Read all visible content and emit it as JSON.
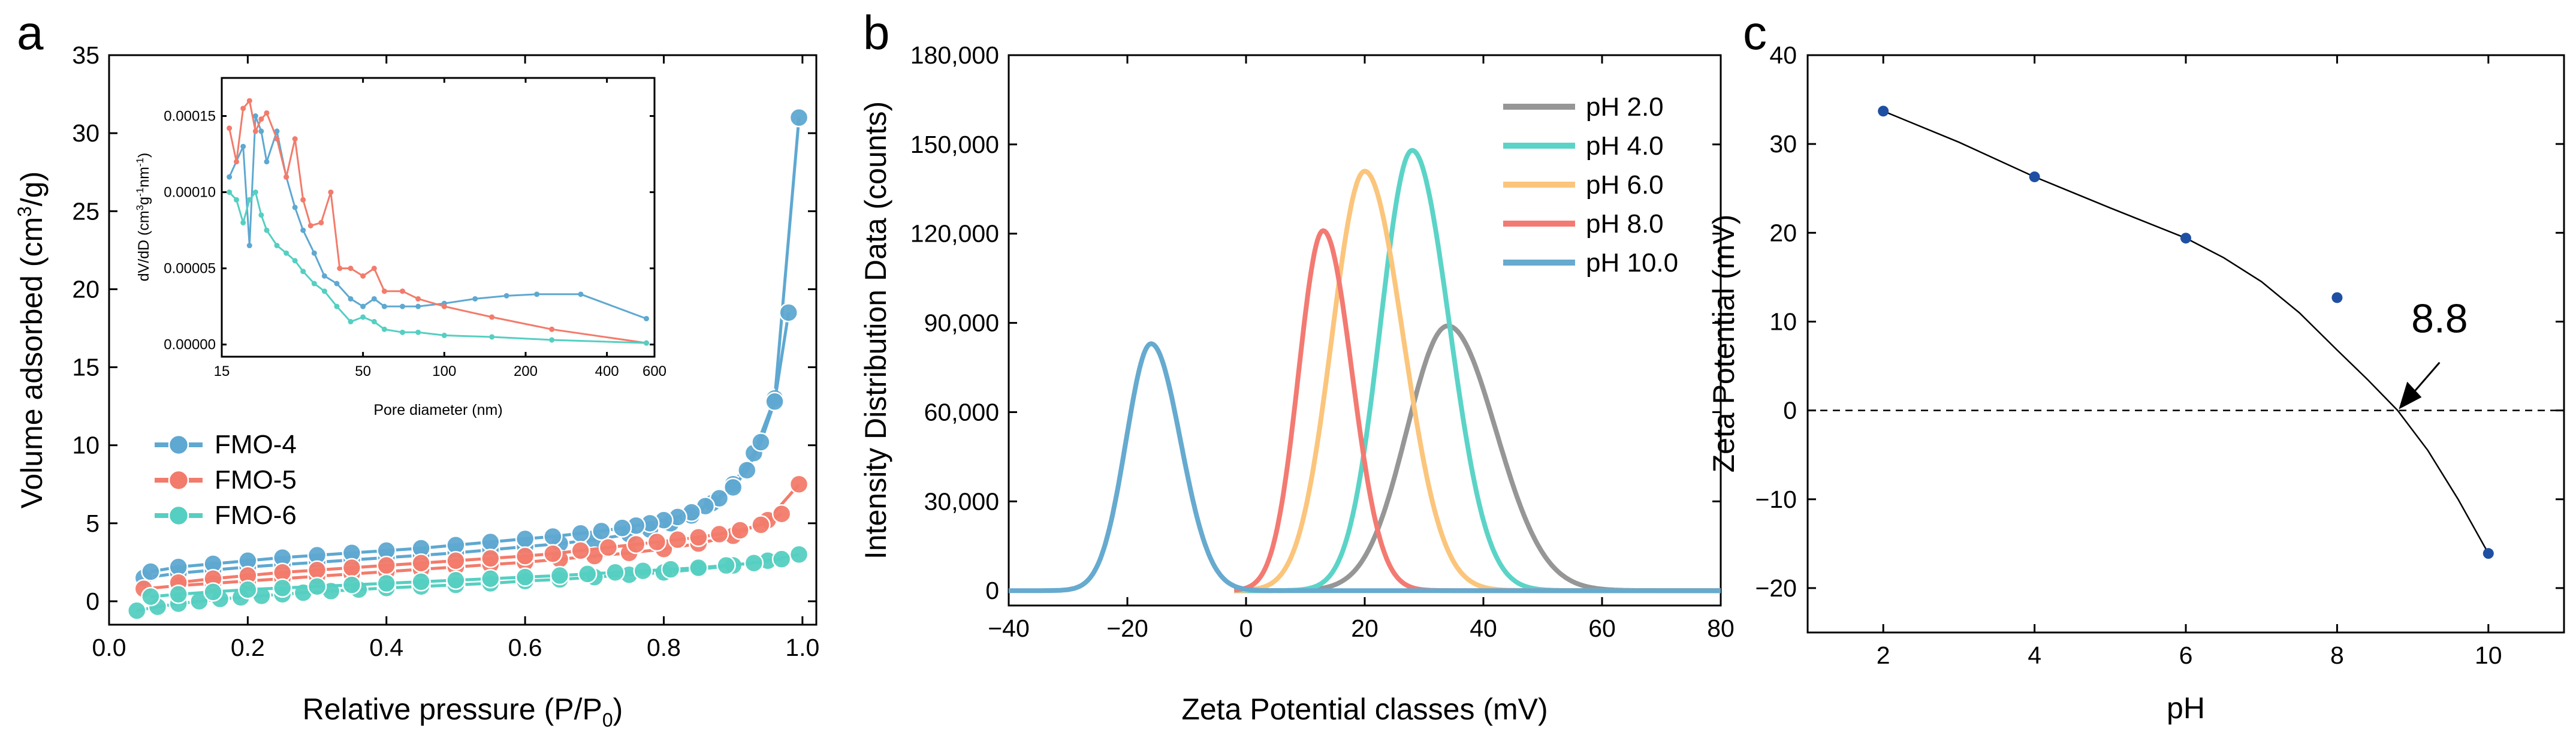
{
  "colors": {
    "fmo4": "#5ea8d1",
    "fmo5": "#f27b6b",
    "fmo6": "#55cfc1",
    "ph2": "#969696",
    "ph4": "#5bd4c7",
    "ph6": "#fbc57c",
    "ph8": "#f37a72",
    "ph10": "#66aacf",
    "pointC": "#1f4fa3"
  },
  "chart_data": [
    {
      "panel": "a",
      "type": "scatter",
      "mode": "lines+markers",
      "xlabel": "Relative pressure (P/P",
      "xlabel_sub": "0",
      "xlabel_end": ")",
      "ylabel": "Volume adsorbed (cm",
      "ylabel_sup": "3",
      "ylabel_end": "/g)",
      "xlim": [
        0.0,
        1.02
      ],
      "ylim": [
        -1.5,
        35
      ],
      "xticks": [
        "0.0",
        "0.2",
        "0.4",
        "0.6",
        "0.8",
        "1.0"
      ],
      "xtick_values": [
        0.0,
        0.2,
        0.4,
        0.6,
        0.8,
        1.0
      ],
      "yticks": [
        "0",
        "5",
        "10",
        "15",
        "20",
        "25",
        "30",
        "35"
      ],
      "ytick_values": [
        0,
        5,
        10,
        15,
        20,
        25,
        30,
        35
      ],
      "legend": {
        "position": "center-left",
        "entries": [
          "FMO-4",
          "FMO-5",
          "FMO-6"
        ]
      },
      "series": [
        {
          "name": "FMO-4",
          "adsorption": {
            "x": [
              0.05,
              0.1,
              0.15,
              0.2,
              0.25,
              0.3,
              0.35,
              0.4,
              0.45,
              0.5,
              0.55,
              0.6,
              0.65,
              0.7,
              0.75,
              0.78,
              0.81,
              0.84,
              0.87,
              0.9,
              0.93,
              0.96,
              0.995
            ],
            "y": [
              1.5,
              1.8,
              2.0,
              2.2,
              2.35,
              2.5,
              2.65,
              2.8,
              2.95,
              3.1,
              3.3,
              3.5,
              3.7,
              3.95,
              4.3,
              4.6,
              5.0,
              5.5,
              6.3,
              7.5,
              9.5,
              13.0,
              31.0
            ]
          },
          "desorption": {
            "x": [
              0.98,
              0.96,
              0.94,
              0.92,
              0.9,
              0.88,
              0.86,
              0.84,
              0.82,
              0.8,
              0.78,
              0.76,
              0.74,
              0.71,
              0.68,
              0.64,
              0.6,
              0.55,
              0.5,
              0.45,
              0.4,
              0.35,
              0.3,
              0.25,
              0.2,
              0.15,
              0.1,
              0.06
            ],
            "y": [
              18.5,
              12.8,
              10.2,
              8.4,
              7.3,
              6.6,
              6.1,
              5.7,
              5.4,
              5.2,
              5.0,
              4.85,
              4.7,
              4.5,
              4.35,
              4.15,
              4.0,
              3.8,
              3.6,
              3.4,
              3.25,
              3.1,
              2.95,
              2.8,
              2.6,
              2.4,
              2.2,
              1.9
            ]
          }
        },
        {
          "name": "FMO-5",
          "adsorption": {
            "x": [
              0.05,
              0.1,
              0.15,
              0.2,
              0.25,
              0.3,
              0.35,
              0.4,
              0.45,
              0.5,
              0.55,
              0.6,
              0.65,
              0.7,
              0.75,
              0.8,
              0.85,
              0.9,
              0.95,
              0.995
            ],
            "y": [
              0.8,
              1.0,
              1.15,
              1.3,
              1.45,
              1.6,
              1.75,
              1.9,
              2.05,
              2.2,
              2.35,
              2.5,
              2.7,
              2.9,
              3.1,
              3.35,
              3.7,
              4.2,
              5.2,
              7.5
            ]
          },
          "desorption": {
            "x": [
              0.97,
              0.94,
              0.91,
              0.88,
              0.85,
              0.82,
              0.79,
              0.76,
              0.72,
              0.68,
              0.64,
              0.6,
              0.55,
              0.5,
              0.45,
              0.4,
              0.35,
              0.3,
              0.25,
              0.2,
              0.15,
              0.1
            ],
            "y": [
              5.6,
              4.9,
              4.55,
              4.3,
              4.1,
              3.95,
              3.8,
              3.65,
              3.45,
              3.25,
              3.05,
              2.9,
              2.75,
              2.6,
              2.45,
              2.3,
              2.15,
              2.0,
              1.85,
              1.65,
              1.45,
              1.2
            ]
          }
        },
        {
          "name": "FMO-6",
          "adsorption": {
            "x": [
              0.04,
              0.07,
              0.1,
              0.13,
              0.16,
              0.19,
              0.22,
              0.25,
              0.28,
              0.32,
              0.36,
              0.4,
              0.45,
              0.5,
              0.55,
              0.6,
              0.65,
              0.7,
              0.75,
              0.8,
              0.85,
              0.9,
              0.95,
              0.995
            ],
            "y": [
              -0.6,
              -0.35,
              -0.15,
              0.0,
              0.15,
              0.25,
              0.35,
              0.45,
              0.55,
              0.65,
              0.75,
              0.85,
              0.95,
              1.05,
              1.15,
              1.3,
              1.4,
              1.55,
              1.7,
              1.85,
              2.05,
              2.3,
              2.6,
              3.0
            ]
          },
          "desorption": {
            "x": [
              0.97,
              0.93,
              0.89,
              0.85,
              0.81,
              0.77,
              0.73,
              0.69,
              0.65,
              0.6,
              0.55,
              0.5,
              0.45,
              0.4,
              0.35,
              0.3,
              0.25,
              0.2,
              0.15,
              0.1,
              0.06
            ],
            "y": [
              2.7,
              2.45,
              2.3,
              2.15,
              2.05,
              1.95,
              1.85,
              1.75,
              1.65,
              1.55,
              1.45,
              1.35,
              1.25,
              1.15,
              1.05,
              0.95,
              0.85,
              0.75,
              0.6,
              0.45,
              0.3
            ]
          }
        }
      ],
      "inset": {
        "type": "line",
        "xscale": "log",
        "xlabel": "Pore diameter (nm)",
        "ylabel": "dV/dD (cm",
        "ylabel_sup1": "3",
        "ylabel_mid": "g",
        "ylabel_sup2": "-1",
        "ylabel_mid2": "nm",
        "ylabel_sup3": "-1",
        "ylabel_end": ")",
        "xlim": [
          15,
          600
        ],
        "ylim": [
          -8e-06,
          0.000175
        ],
        "xticks": [
          "15",
          "50",
          "100",
          "200",
          "400",
          "600"
        ],
        "xtick_values": [
          15,
          50,
          100,
          200,
          400,
          600
        ],
        "yticks": [
          "0.00000",
          "0.00005",
          "0.00010",
          "0.00015"
        ],
        "ytick_values": [
          0,
          5e-05,
          0.0001,
          0.00015
        ],
        "series": [
          {
            "name": "FMO-4",
            "x": [
              16,
              18,
              19,
              20,
              21,
              22,
              24,
              26,
              28,
              30,
              33,
              36,
              40,
              45,
              50,
              55,
              60,
              70,
              80,
              100,
              130,
              170,
              220,
              320,
              560
            ],
            "y": [
              0.00011,
              0.00013,
              6.5e-05,
              0.00015,
              0.00014,
              0.00012,
              0.00014,
              0.00011,
              9e-05,
              7.5e-05,
              6e-05,
              4.5e-05,
              4e-05,
              3e-05,
              2.5e-05,
              3e-05,
              2.5e-05,
              2.5e-05,
              2.5e-05,
              2.7e-05,
              3e-05,
              3.2e-05,
              3.3e-05,
              3.3e-05,
              1.7e-05
            ]
          },
          {
            "name": "FMO-5",
            "x": [
              16,
              17,
              18,
              19,
              20,
              21,
              22,
              24,
              26,
              28,
              30,
              32,
              35,
              38,
              41,
              45,
              50,
              55,
              60,
              70,
              80,
              100,
              150,
              250,
              560
            ],
            "y": [
              0.000142,
              0.00012,
              0.000155,
              0.00016,
              0.00014,
              0.000148,
              0.000152,
              0.000135,
              0.00011,
              0.000135,
              9.5e-05,
              7.8e-05,
              8e-05,
              0.0001,
              5e-05,
              5e-05,
              4.5e-05,
              5e-05,
              3.5e-05,
              3.5e-05,
              3e-05,
              2.5e-05,
              1.8e-05,
              1e-05,
              1e-06
            ]
          },
          {
            "name": "FMO-6",
            "x": [
              16,
              17,
              18,
              19,
              20,
              21,
              22,
              24,
              26,
              28,
              30,
              33,
              36,
              40,
              45,
              50,
              55,
              60,
              70,
              80,
              100,
              150,
              250,
              560
            ],
            "y": [
              0.0001,
              9.5e-05,
              8e-05,
              9.5e-05,
              0.0001,
              8.5e-05,
              7.5e-05,
              6.5e-05,
              6e-05,
              5.5e-05,
              4.8e-05,
              4e-05,
              3.5e-05,
              2.5e-05,
              1.5e-05,
              1.8e-05,
              1.5e-05,
              1e-05,
              8e-06,
              8e-06,
              6e-06,
              5e-06,
              3e-06,
              1e-06
            ]
          }
        ]
      }
    },
    {
      "panel": "b",
      "type": "line",
      "xlabel": "Zeta Potential classes (mV)",
      "ylabel": "Intensity Distribution Data (counts)",
      "xlim": [
        -40,
        80
      ],
      "ylim": [
        -5000,
        180000
      ],
      "xticks": [
        "−40",
        "−20",
        "0",
        "20",
        "40",
        "60",
        "80"
      ],
      "xtick_values": [
        -40,
        -20,
        0,
        20,
        40,
        60,
        80
      ],
      "yticks": [
        "0",
        "30,000",
        "60,000",
        "90,000",
        "120,000",
        "150,000",
        "180,000"
      ],
      "ytick_values": [
        0,
        30000,
        60000,
        90000,
        120000,
        150000,
        180000
      ],
      "legend": {
        "position": "top-right",
        "entries": [
          "pH 2.0",
          "pH 4.0",
          "pH 6.0",
          "pH 8.0",
          "pH 10.0"
        ]
      },
      "series": [
        {
          "name": "pH 2.0",
          "peak_x": 34,
          "peak_y": 89000,
          "sigma": 7.5,
          "range": [
            -2,
            80
          ]
        },
        {
          "name": "pH 4.0",
          "peak_x": 28,
          "peak_y": 148000,
          "sigma": 5.8,
          "range": [
            -2,
            80
          ]
        },
        {
          "name": "pH 6.0",
          "peak_x": 20,
          "peak_y": 141000,
          "sigma": 6.0,
          "range": [
            -2,
            80
          ]
        },
        {
          "name": "pH 8.0",
          "peak_x": 13,
          "peak_y": 121000,
          "sigma": 4.5,
          "range": [
            -2,
            80
          ]
        },
        {
          "name": "pH 10.0",
          "peak_x": -16,
          "peak_y": 83000,
          "sigma": 4.6,
          "range": [
            -40,
            80
          ]
        }
      ]
    },
    {
      "panel": "c",
      "type": "scatter",
      "xlabel": "pH",
      "ylabel": "Zeta Potential (mV)",
      "xlim": [
        1,
        11
      ],
      "ylim": [
        -25,
        40
      ],
      "xticks": [
        "2",
        "4",
        "6",
        "8",
        "10"
      ],
      "xtick_values": [
        2,
        4,
        6,
        8,
        10
      ],
      "yticks": [
        "−20",
        "−10",
        "0",
        "10",
        "20",
        "30",
        "40"
      ],
      "ytick_values": [
        -20,
        -10,
        0,
        10,
        20,
        30,
        40
      ],
      "points": {
        "x": [
          2,
          4,
          6,
          8,
          10
        ],
        "y": [
          33.7,
          26.3,
          19.4,
          12.7,
          -16.1
        ]
      },
      "fit": {
        "x": [
          2,
          3,
          4,
          5,
          6,
          6.5,
          7,
          7.5,
          8,
          8.4,
          8.8,
          9.2,
          9.6,
          10
        ],
        "y": [
          33.7,
          30.2,
          26.3,
          22.8,
          19.4,
          17.2,
          14.5,
          11.0,
          6.8,
          3.5,
          0.0,
          -4.5,
          -10.0,
          -16.1
        ]
      },
      "zero_line": 0,
      "annotation": {
        "text": "8.8",
        "x": 8.8,
        "y": 0
      }
    }
  ],
  "panels": {
    "a": "a",
    "b": "b",
    "c": "c"
  }
}
